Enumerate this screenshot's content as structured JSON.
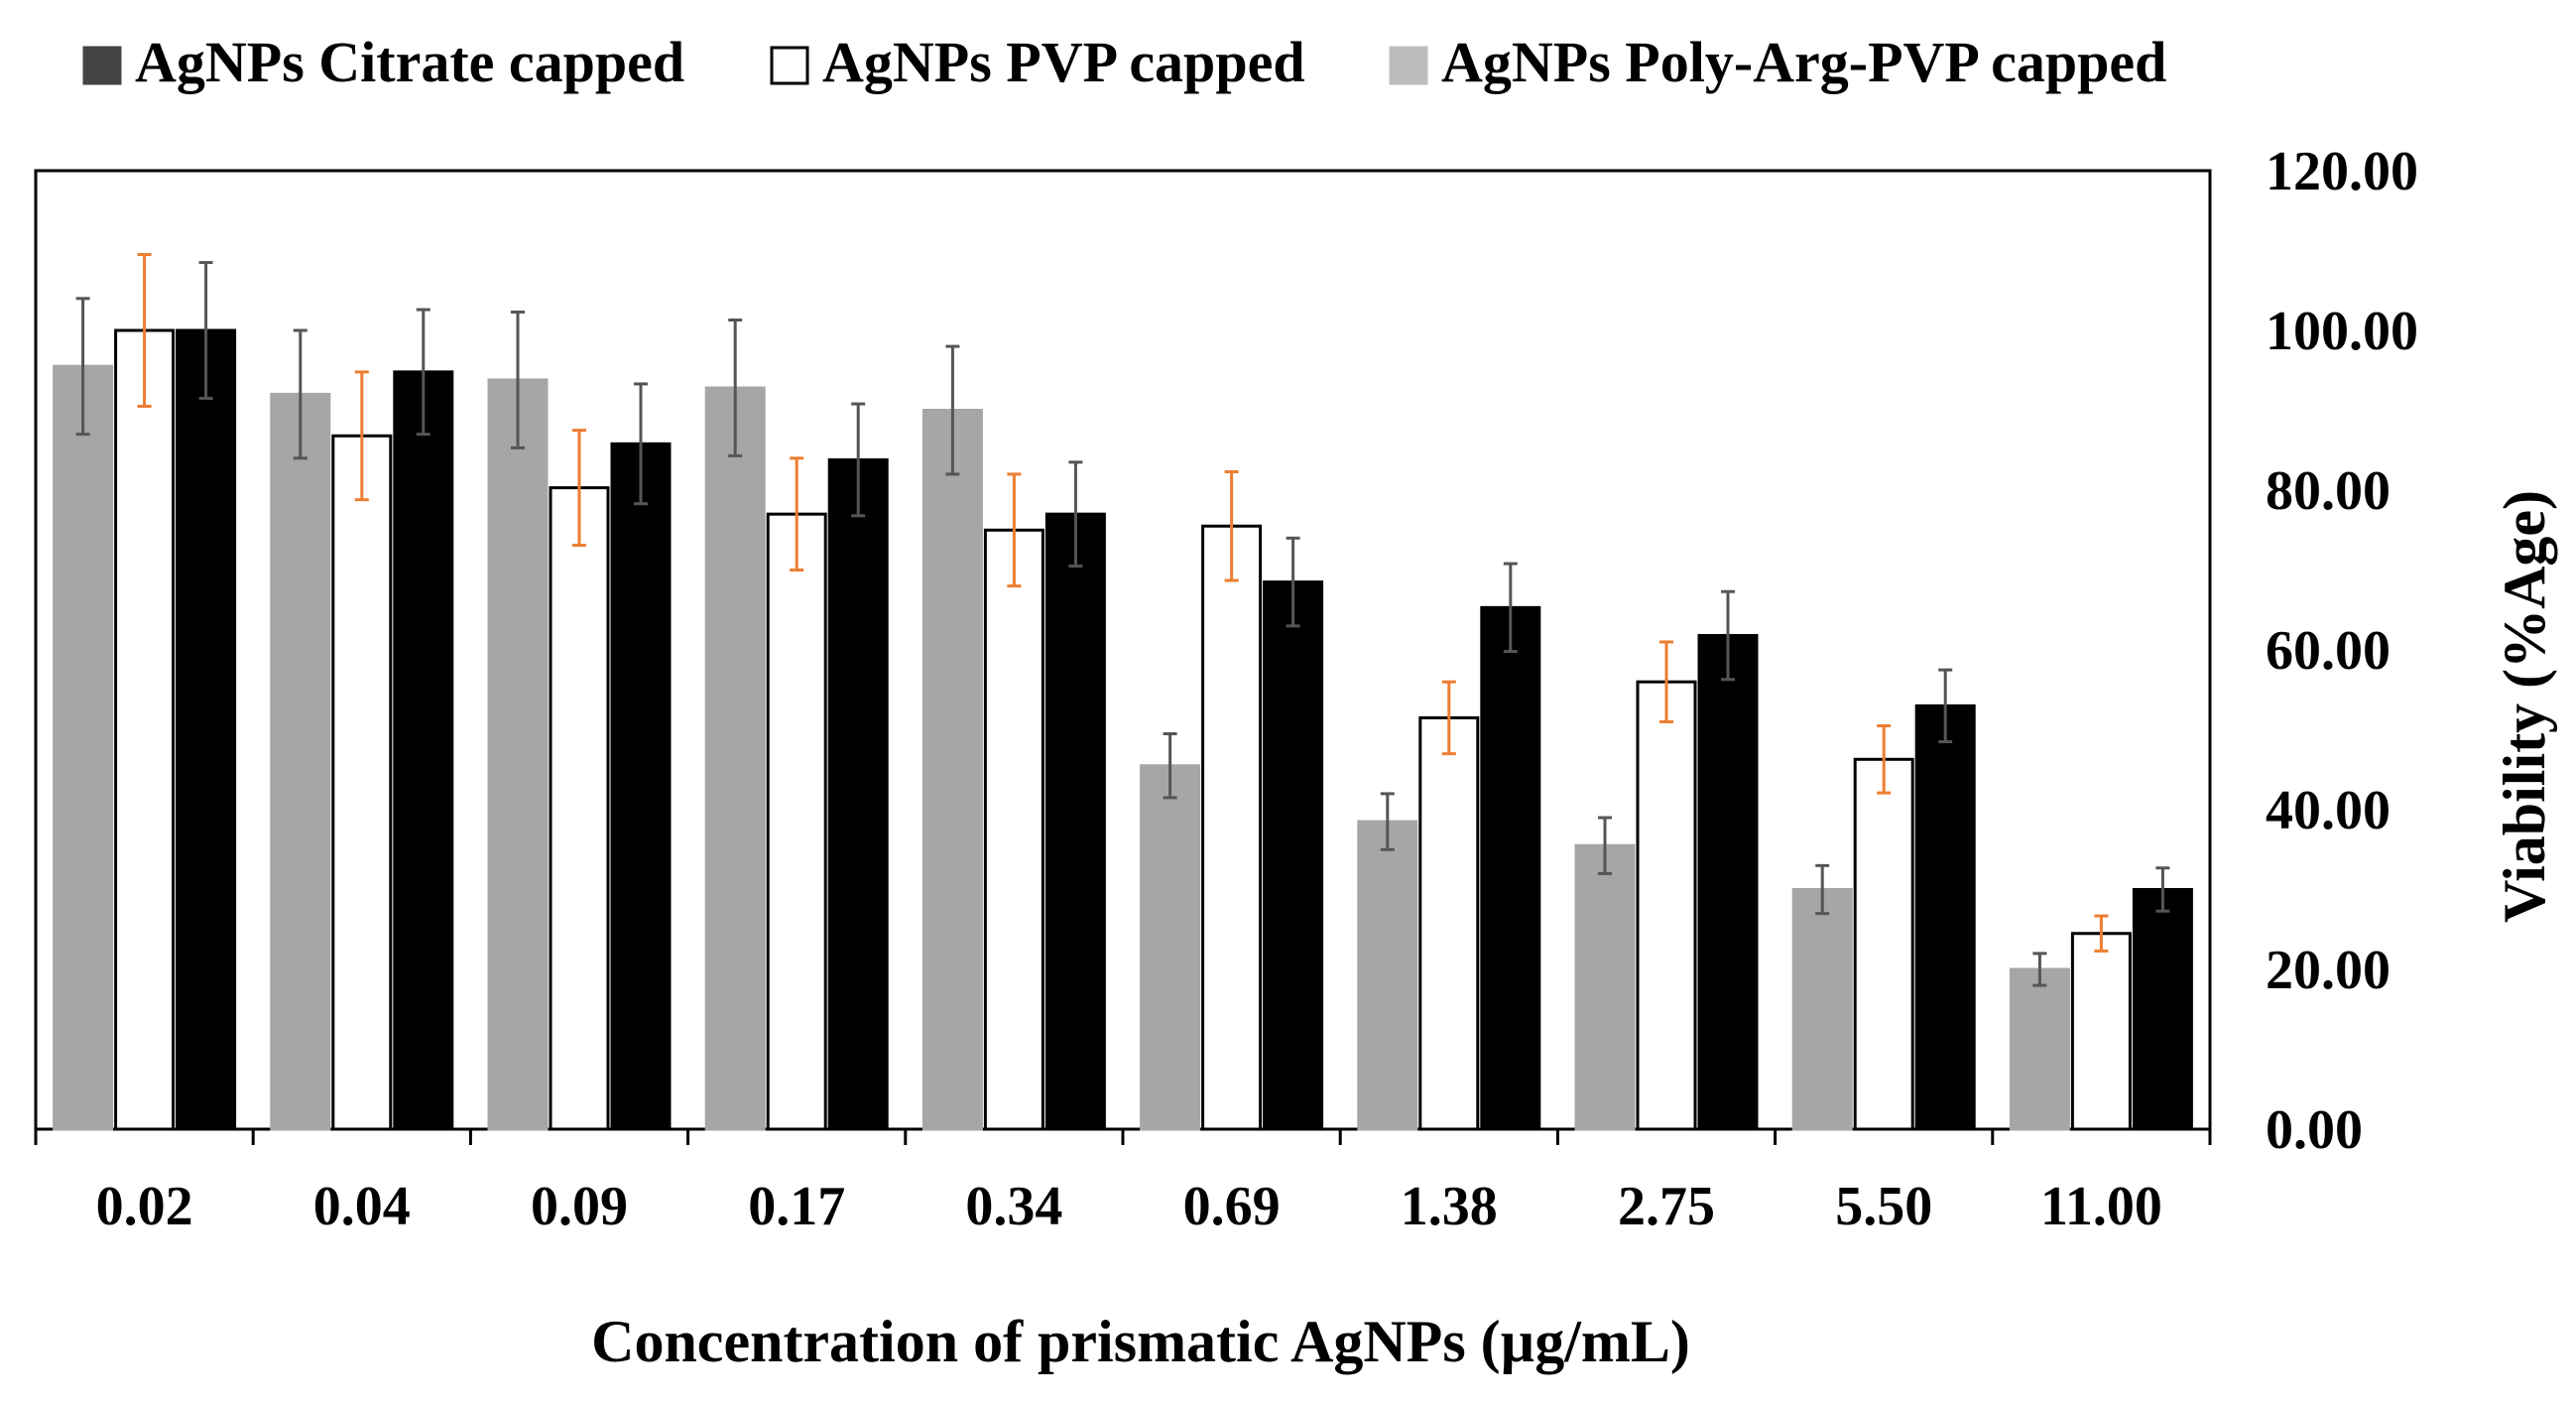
{
  "chart_data": {
    "type": "bar",
    "title": "",
    "xlabel": "Concentration of prismatic AgNPs  (µg/mL)",
    "ylabel": "Viability (%Age)",
    "ylim": [
      0,
      120
    ],
    "y_ticks": [
      "0.00",
      "20.00",
      "40.00",
      "60.00",
      "80.00",
      "100.00",
      "120.00"
    ],
    "y_axis_side": "right",
    "grid": false,
    "legend_position": "top",
    "categories": [
      "0.02",
      "0.04",
      "0.09",
      "0.17",
      "0.34",
      "0.69",
      "1.38",
      "2.75",
      "5.50",
      "11.00"
    ],
    "series": [
      {
        "name": "AgNPs Poly-Arg-PVP  capped",
        "fill": "#a6a6a6",
        "stroke": "#a6a6a6",
        "error_color": "#555555",
        "values": [
          95.5,
          92.0,
          93.8,
          92.8,
          90.0,
          45.5,
          38.5,
          35.5,
          30.0,
          20.0
        ],
        "errors": [
          8.5,
          8.0,
          8.5,
          8.5,
          8.0,
          4.0,
          3.5,
          3.5,
          3.0,
          2.0
        ]
      },
      {
        "name": "AgNPs PVP capped",
        "fill": "#ffffff",
        "stroke": "#000000",
        "error_color": "#ed7d31",
        "values": [
          100.0,
          86.8,
          80.3,
          77.0,
          75.0,
          75.5,
          51.5,
          56.0,
          46.3,
          24.5
        ],
        "errors": [
          9.5,
          8.0,
          7.2,
          7.0,
          7.0,
          6.8,
          4.5,
          5.0,
          4.2,
          2.2
        ]
      },
      {
        "name": "AgNPs Citrate capped",
        "fill": "#000000",
        "stroke": "#000000",
        "error_color": "#555555",
        "values": [
          100.0,
          94.8,
          85.8,
          83.8,
          77.0,
          68.5,
          65.3,
          61.8,
          53.0,
          30.0
        ],
        "errors": [
          8.5,
          7.8,
          7.5,
          7.0,
          6.5,
          5.5,
          5.5,
          5.5,
          4.5,
          2.7
        ]
      }
    ],
    "legend": [
      {
        "label": "AgNPs Citrate capped",
        "fill": "#444444",
        "stroke": "#444444"
      },
      {
        "label": "AgNPs PVP capped",
        "fill": "#ffffff",
        "stroke": "#000000"
      },
      {
        "label": "AgNPs Poly-Arg-PVP  capped",
        "fill": "#bdbdbd",
        "stroke": "#bdbdbd"
      }
    ]
  }
}
